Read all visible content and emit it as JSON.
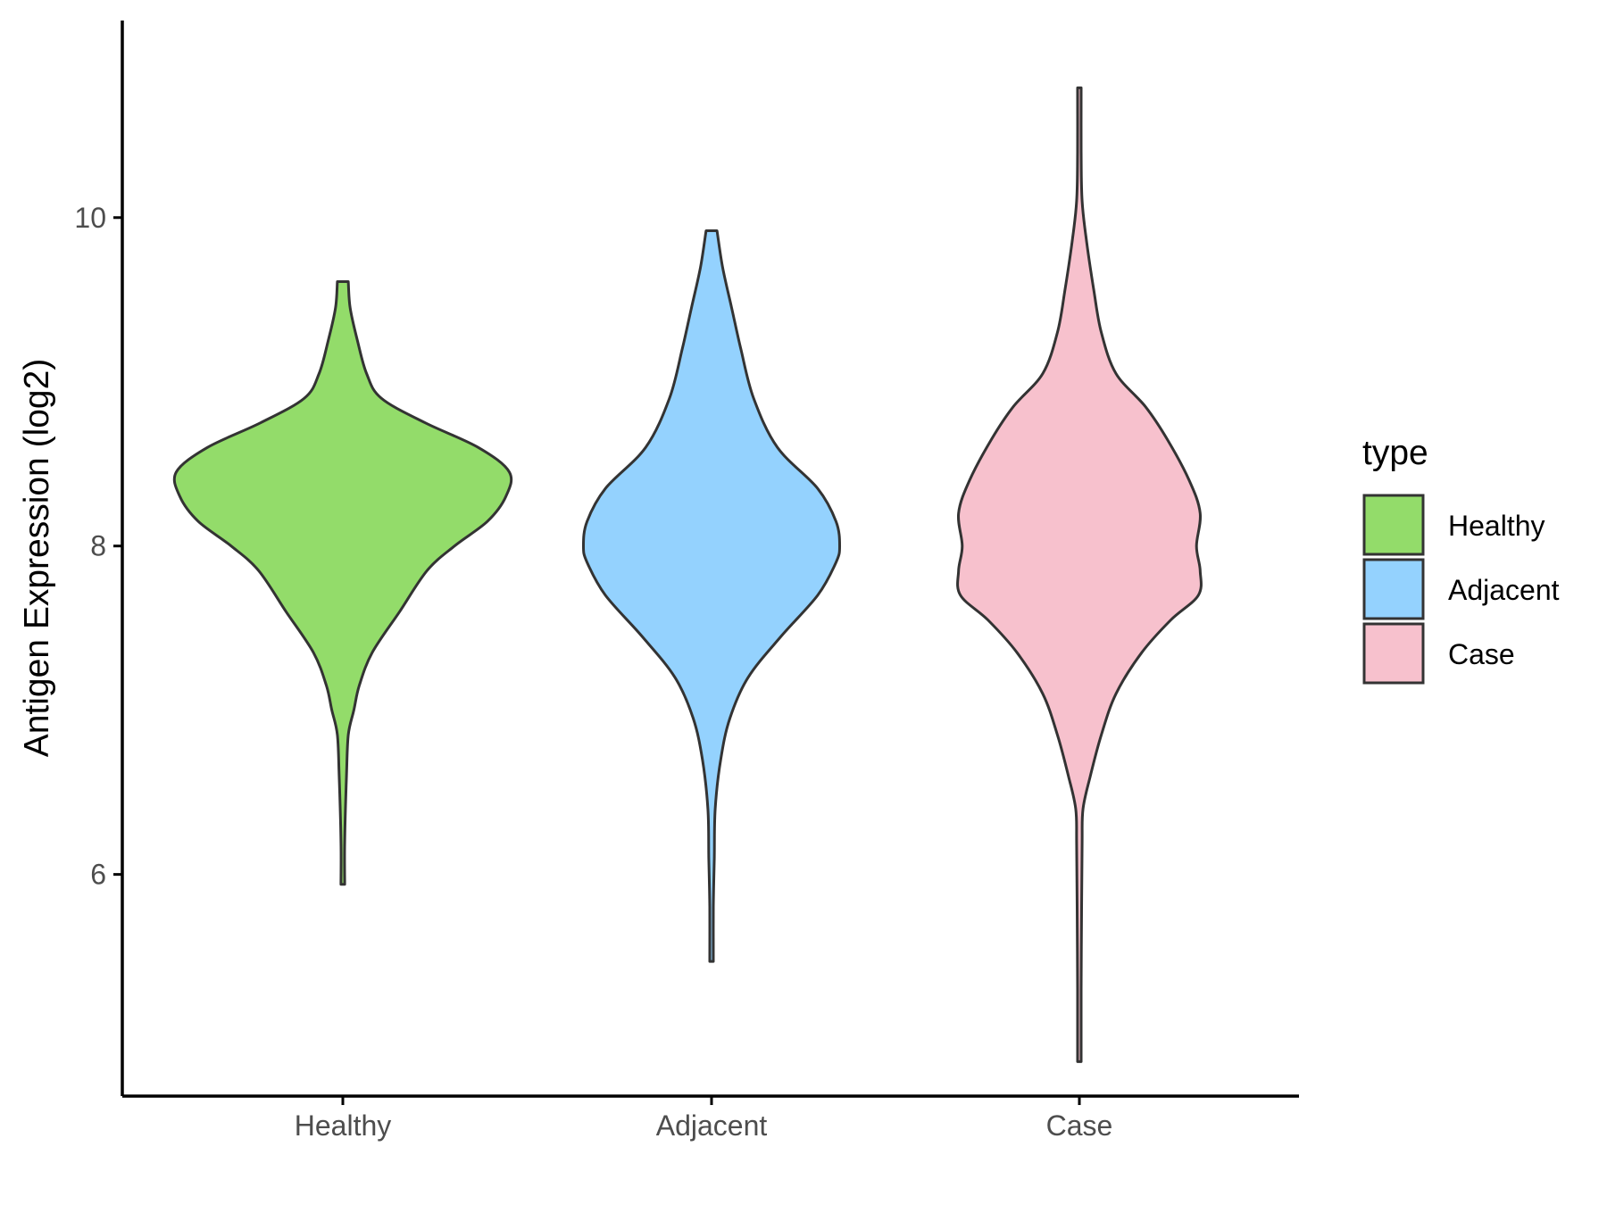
{
  "chart_data": {
    "type": "violin",
    "title": "",
    "xlabel": "",
    "ylabel": "Antigen Expression (log2)",
    "ylim": [
      4.65,
      11.2
    ],
    "yticks": [
      6,
      8,
      10
    ],
    "categories": [
      "Healthy",
      "Adjacent",
      "Case"
    ],
    "grid": false,
    "legend": {
      "title": "type",
      "position": "right"
    },
    "series": [
      {
        "name": "Healthy",
        "color": "#93dc6a",
        "min": 5.94,
        "max": 9.61,
        "profile": [
          [
            5.94,
            0.01
          ],
          [
            6.2,
            0.01
          ],
          [
            6.6,
            0.02
          ],
          [
            6.85,
            0.03
          ],
          [
            7.0,
            0.06
          ],
          [
            7.15,
            0.09
          ],
          [
            7.35,
            0.16
          ],
          [
            7.6,
            0.31
          ],
          [
            7.85,
            0.46
          ],
          [
            8.0,
            0.61
          ],
          [
            8.15,
            0.79
          ],
          [
            8.3,
            0.89
          ],
          [
            8.45,
            0.91
          ],
          [
            8.6,
            0.74
          ],
          [
            8.75,
            0.45
          ],
          [
            8.9,
            0.21
          ],
          [
            9.05,
            0.13
          ],
          [
            9.25,
            0.08
          ],
          [
            9.45,
            0.04
          ],
          [
            9.61,
            0.03
          ]
        ]
      },
      {
        "name": "Adjacent",
        "color": "#94d2fe",
        "min": 5.47,
        "max": 9.92,
        "profile": [
          [
            5.47,
            0.01
          ],
          [
            5.8,
            0.01
          ],
          [
            6.1,
            0.015
          ],
          [
            6.4,
            0.02
          ],
          [
            6.7,
            0.05
          ],
          [
            6.95,
            0.1
          ],
          [
            7.2,
            0.2
          ],
          [
            7.45,
            0.38
          ],
          [
            7.7,
            0.58
          ],
          [
            7.9,
            0.68
          ],
          [
            8.0,
            0.7
          ],
          [
            8.15,
            0.68
          ],
          [
            8.35,
            0.58
          ],
          [
            8.6,
            0.36
          ],
          [
            8.9,
            0.23
          ],
          [
            9.2,
            0.16
          ],
          [
            9.45,
            0.11
          ],
          [
            9.7,
            0.06
          ],
          [
            9.92,
            0.03
          ]
        ]
      },
      {
        "name": "Case",
        "color": "#f7c1cd",
        "min": 4.86,
        "max": 10.79,
        "profile": [
          [
            4.86,
            0.01
          ],
          [
            5.3,
            0.01
          ],
          [
            5.8,
            0.012
          ],
          [
            6.2,
            0.015
          ],
          [
            6.4,
            0.02
          ],
          [
            6.6,
            0.06
          ],
          [
            6.85,
            0.12
          ],
          [
            7.1,
            0.2
          ],
          [
            7.35,
            0.34
          ],
          [
            7.55,
            0.5
          ],
          [
            7.7,
            0.65
          ],
          [
            7.85,
            0.66
          ],
          [
            8.0,
            0.64
          ],
          [
            8.2,
            0.66
          ],
          [
            8.4,
            0.6
          ],
          [
            8.65,
            0.48
          ],
          [
            8.85,
            0.36
          ],
          [
            9.05,
            0.2
          ],
          [
            9.3,
            0.12
          ],
          [
            9.55,
            0.08
          ],
          [
            9.85,
            0.04
          ],
          [
            10.1,
            0.015
          ],
          [
            10.4,
            0.01
          ],
          [
            10.79,
            0.01
          ]
        ]
      }
    ]
  }
}
